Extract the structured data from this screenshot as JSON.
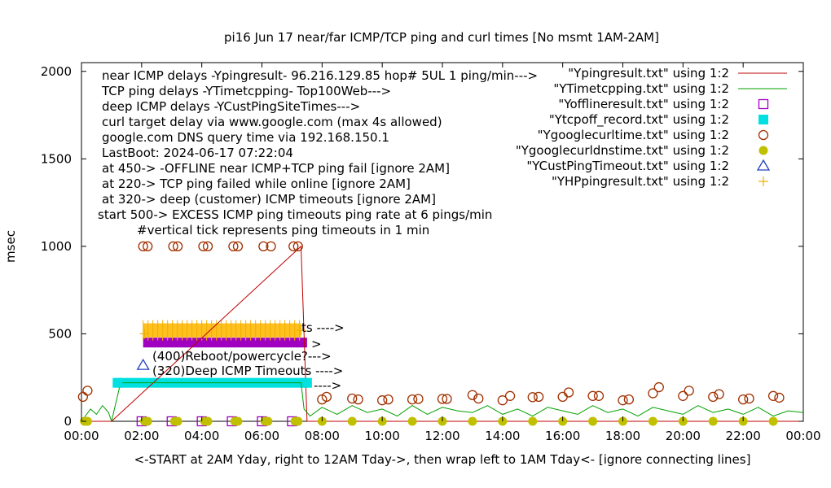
{
  "chart_data": {
    "type": "scatter",
    "title": "pi16 Jun 17  near/far ICMP/TCP ping and curl times [No msmt 1AM-2AM]",
    "xlabel": "<-START at 2AM Yday, right to 12AM Tday->, then wrap left to 1AM Tday<- [ignore connecting lines]",
    "ylabel": "msec",
    "xlim": [
      0,
      24
    ],
    "ylim": [
      0,
      2050
    ],
    "x_ticks": [
      "00:00",
      "02:00",
      "04:00",
      "06:00",
      "08:00",
      "10:00",
      "12:00",
      "14:00",
      "16:00",
      "18:00",
      "20:00",
      "22:00",
      "00:00"
    ],
    "y_ticks": [
      "0",
      "500",
      "1000",
      "1500",
      "2000"
    ],
    "grid": false,
    "legend_position": "top-right",
    "annotations_topleft": [
      "near ICMP delays -Ypingresult- 96.216.129.85 hop# 5UL 1 ping/min--->",
      "TCP ping delays -YTimetcpping- Top100Web--->",
      "deep ICMP delays -YCustPingSiteTimes--->",
      "curl target delay via www.google.com (max 4s allowed)",
      "google.com DNS query time via 192.168.150.1",
      "LastBoot: 2024-06-17 07:22:04",
      "at 450-> -OFFLINE near ICMP+TCP ping fail [ignore 2AM]",
      "at 220-> TCP ping failed while online [ignore 2AM]",
      "at 320-> deep (customer) ICMP timeouts [ignore 2AM]",
      "start 500-> EXCESS ICMP ping timeouts ping rate at 6 pings/min",
      "#vertical tick represents ping timeouts in 1 min"
    ],
    "annotations_inplot": [
      "(400)Reboot/powercycle?--->",
      "(320)Deep ICMP Timeouts ---->",
      "ts ---->",
      ">",
      "---->"
    ],
    "series": [
      {
        "name": "\"Ypingresult.txt\" using 1:2",
        "style": "line",
        "color": "#c00000",
        "x": [
          0,
          1.0,
          7.3,
          7.5,
          8.0,
          9,
          10,
          11,
          12,
          13,
          14,
          15,
          16,
          17,
          18,
          19,
          20,
          21,
          22,
          23,
          24
        ],
        "y": [
          0,
          0,
          1000,
          0,
          0,
          0,
          0,
          0,
          0,
          0,
          0,
          0,
          0,
          0,
          0,
          0,
          0,
          0,
          0,
          0,
          0
        ]
      },
      {
        "name": "\"YTimetcpping.txt\" using 1:2",
        "style": "line",
        "color": "#00a000",
        "x": [
          0,
          0.3,
          0.5,
          0.7,
          0.9,
          1.0,
          1.3,
          7.3,
          7.4,
          7.6,
          8,
          8.5,
          9,
          9.5,
          10,
          10.5,
          11,
          11.5,
          12,
          12.5,
          13,
          13.5,
          14,
          14.5,
          15,
          15.5,
          16,
          16.5,
          17,
          17.5,
          18,
          18.5,
          19,
          19.5,
          20,
          20.5,
          21,
          21.5,
          22,
          22.5,
          23,
          23.5,
          24
        ],
        "y": [
          0,
          70,
          40,
          90,
          50,
          0,
          220,
          220,
          70,
          30,
          80,
          40,
          90,
          50,
          70,
          30,
          90,
          40,
          80,
          60,
          50,
          90,
          40,
          70,
          30,
          80,
          60,
          40,
          90,
          50,
          70,
          30,
          80,
          60,
          40,
          90,
          50,
          70,
          40,
          80,
          30,
          60,
          50
        ]
      },
      {
        "name": "\"Yofflineresult.txt\" using 1:2",
        "style": "open-square",
        "color": "#a000c0",
        "x": [
          2.0,
          3.0,
          4.0,
          5.0,
          6.0,
          7.0
        ],
        "y": [
          0,
          0,
          0,
          0,
          0,
          0
        ]
      },
      {
        "name": "\"Ytcpoff_record.txt\" using 1:2",
        "style": "filled-square",
        "color": "#00e0e0",
        "x": [
          1.2,
          7.5
        ],
        "y": [
          220,
          220
        ]
      },
      {
        "name": "\"Ygooglecurltime.txt\" using 1:2",
        "style": "open-circle",
        "color": "#a03000",
        "x": [
          0.05,
          0.2,
          2.05,
          2.2,
          3.05,
          3.2,
          4.05,
          4.2,
          5.05,
          5.2,
          6.05,
          6.3,
          7.05,
          7.2,
          8.0,
          8.15,
          9.0,
          9.2,
          10.0,
          10.2,
          11.0,
          11.2,
          12.0,
          12.15,
          13.0,
          13.2,
          14.0,
          14.25,
          15.0,
          15.2,
          16.0,
          16.2,
          17.0,
          17.2,
          18.0,
          18.2,
          19.0,
          19.2,
          20.0,
          20.2,
          21.0,
          21.2,
          22.0,
          22.2,
          23.0,
          23.2
        ],
        "y": [
          140,
          175,
          1000,
          1000,
          1000,
          1000,
          1000,
          1000,
          1000,
          1000,
          1000,
          1000,
          1000,
          1000,
          125,
          140,
          130,
          125,
          120,
          125,
          125,
          128,
          128,
          128,
          150,
          130,
          120,
          145,
          138,
          140,
          140,
          165,
          145,
          145,
          120,
          125,
          160,
          195,
          145,
          175,
          140,
          155,
          125,
          130,
          145,
          135
        ]
      },
      {
        "name": "\"Ygooglecurldnstime.txt\" using 1:2",
        "style": "filled-circle",
        "color": "#c0c000",
        "x": [
          0.1,
          0.2,
          2.1,
          2.2,
          3.1,
          3.2,
          4.1,
          4.2,
          5.1,
          5.2,
          6.1,
          6.2,
          7.1,
          7.2,
          8.0,
          9.0,
          10.0,
          11.0,
          12.0,
          13.0,
          14.0,
          15.0,
          16.0,
          17.0,
          18.0,
          19.0,
          20.0,
          21.0,
          22.0,
          23.0
        ],
        "y": [
          0,
          0,
          0,
          0,
          0,
          0,
          0,
          0,
          0,
          0,
          0,
          0,
          0,
          0,
          0,
          0,
          0,
          0,
          0,
          0,
          0,
          0,
          0,
          0,
          0,
          0,
          0,
          0,
          0,
          0
        ]
      },
      {
        "name": "\"YCustPingTimeout.txt\" using 1:2",
        "style": "open-triangle",
        "color": "#2040c0",
        "x": [
          2.05
        ],
        "y": [
          320
        ]
      },
      {
        "name": "\"YHPpingresult.txt\" using 1:2",
        "style": "plus",
        "color": "#f0b000",
        "x": [
          2.1,
          7.3
        ],
        "y": [
          500,
          520
        ]
      }
    ],
    "bands": [
      {
        "label": "offline near ICMP+TCP",
        "color": "#a000c0",
        "x": [
          2.05,
          7.5
        ],
        "y": 450
      },
      {
        "label": "TCP ping failed",
        "color": "#00e0e0",
        "x": [
          1.2,
          7.5
        ],
        "y": 220
      },
      {
        "label": "excess ICMP timeouts",
        "color": "#ffc020",
        "x": [
          2.05,
          7.3
        ],
        "y": [
          480,
          560
        ]
      }
    ]
  }
}
